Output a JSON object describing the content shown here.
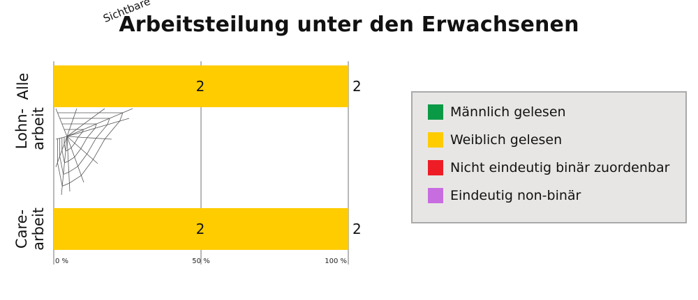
{
  "title_prefix": "Sichtbare",
  "title": "Arbeitsteilung unter den Erwachsenen",
  "chart_data": {
    "type": "bar",
    "orientation": "horizontal",
    "stacked": true,
    "percent_axis": true,
    "categories": [
      "Alle",
      "Lohn-\narbeit",
      "Care-\narbeit"
    ],
    "series": [
      {
        "name": "Männlich gelesen",
        "color": "#0a9a46",
        "values": [
          0,
          0,
          0
        ]
      },
      {
        "name": "Weiblich gelesen",
        "color": "#ffcc00",
        "values": [
          2,
          0,
          2
        ]
      },
      {
        "name": "Nicht eindeutig binär zuordenbar",
        "color": "#ee1c25",
        "values": [
          0,
          0,
          0
        ]
      },
      {
        "name": "Eindeutig non-binär",
        "color": "#c86de0",
        "values": [
          0,
          0,
          0
        ]
      }
    ],
    "totals": [
      "2",
      "",
      "2"
    ],
    "bar_labels": [
      "2",
      "",
      "2"
    ],
    "xticks": [
      0,
      50,
      100
    ],
    "xtick_labels": [
      "0 %",
      "50 %",
      "100 %"
    ],
    "xlim": [
      0,
      100
    ],
    "grid": true,
    "legend": "right",
    "decoration": "spider-web-icon"
  }
}
